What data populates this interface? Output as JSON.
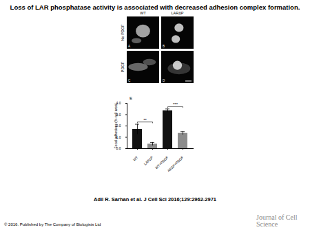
{
  "title": "Loss of LAR phosphatase activity is associated with decreased adhesion complex formation.",
  "micrographs": {
    "columns": [
      "WT",
      "LARΔP"
    ],
    "rows": [
      "No PDGF",
      "PDGF"
    ],
    "panels": [
      "A",
      "B",
      "C",
      "D"
    ]
  },
  "chart_data": {
    "type": "bar",
    "panel": "E",
    "categories": [
      "WT",
      "LARΔP",
      "WT+PDGF",
      "LARΔP+PDGF"
    ],
    "values": [
      1.7,
      0.4,
      3.35,
      1.35
    ],
    "errors": [
      0.45,
      0.15,
      0.15,
      0.15
    ],
    "colors": [
      "#111111",
      "#8c8c8c",
      "#111111",
      "#8c8c8c"
    ],
    "ylabel": "Focal adhesions (% cell area)",
    "ylim": [
      0,
      4
    ],
    "yticks": [
      0,
      1,
      2,
      3,
      4
    ],
    "significance": [
      {
        "pair": [
          "WT",
          "LARΔP"
        ],
        "label": "**"
      },
      {
        "pair": [
          "WT+PDGF",
          "LARΔP+PDGF"
        ],
        "label": "***"
      }
    ]
  },
  "citation": "Adil R. Sarhan et al. J Cell Sci 2016;129:2962-2971",
  "copyright": "© 2016. Published by The Company of Biologists Ltd",
  "logo": "Journal of Cell Science"
}
